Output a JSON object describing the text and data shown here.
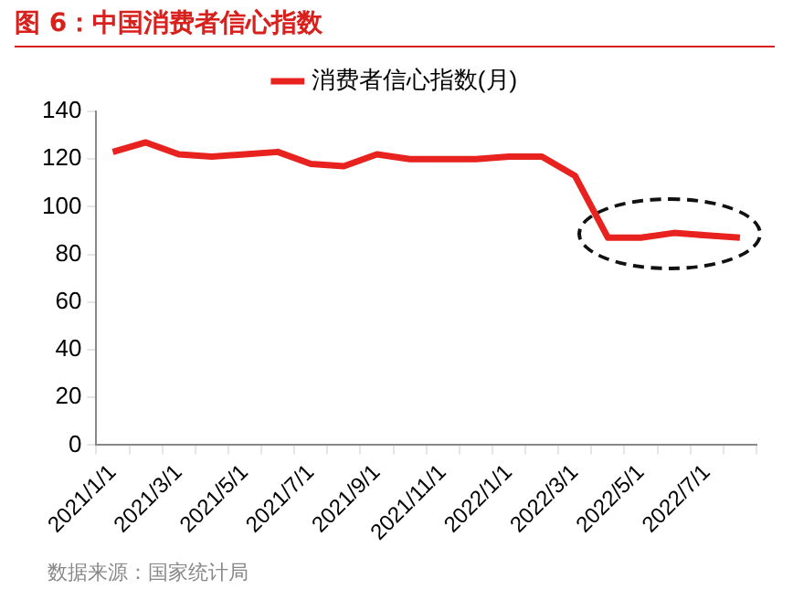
{
  "chart_data": {
    "type": "line",
    "title": "图 6：中国消费者信心指数",
    "categories": [
      "2021/1/1",
      null,
      "2021/3/1",
      null,
      "2021/5/1",
      null,
      "2021/7/1",
      null,
      "2021/9/1",
      null,
      "2021/11/1",
      null,
      "2022/1/1",
      null,
      "2022/3/1",
      null,
      "2022/5/1",
      null,
      "2022/7/1",
      null
    ],
    "series": [
      {
        "name": "消费者信心指数(月)",
        "color": "#e8231f",
        "values": [
          123,
          127,
          122,
          121,
          122,
          123,
          118,
          117,
          122,
          120,
          120,
          120,
          121,
          121,
          113,
          87,
          87,
          89,
          88,
          87
        ]
      }
    ],
    "ylim": [
      0,
      140
    ],
    "yticks": [
      0,
      20,
      40,
      60,
      80,
      100,
      120,
      140
    ],
    "grid": false,
    "legend": "top",
    "marker": "none",
    "line_style": "solid",
    "annotations": [
      "数据来源：国家统计局"
    ]
  }
}
